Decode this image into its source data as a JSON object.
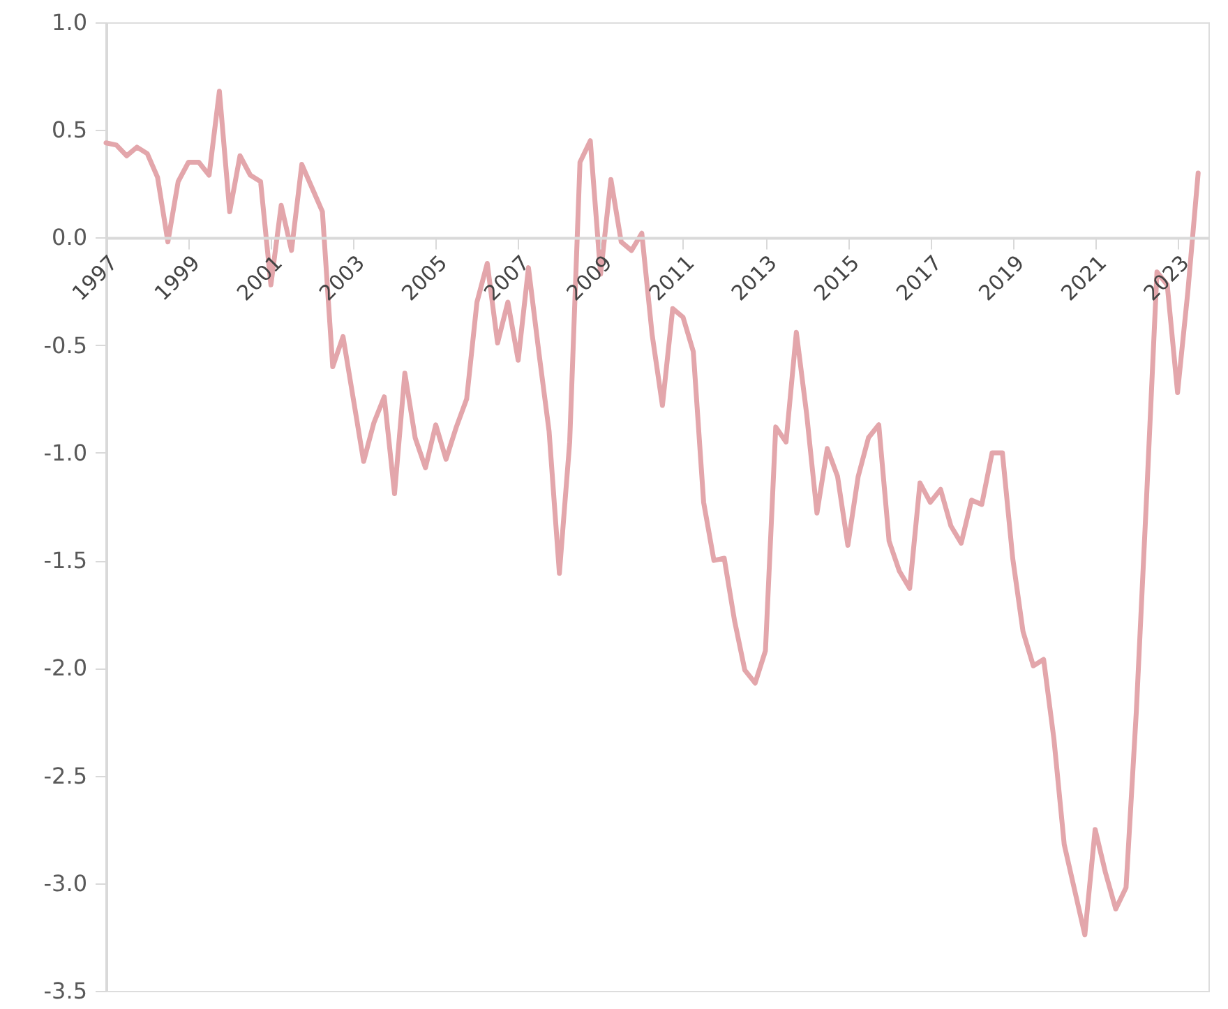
{
  "chart_data": {
    "type": "line",
    "x": [
      1997,
      1997.25,
      1997.5,
      1997.75,
      1998,
      1998.25,
      1998.5,
      1998.75,
      1999,
      1999.25,
      1999.5,
      1999.75,
      2000,
      2000.25,
      2000.5,
      2000.75,
      2001,
      2001.25,
      2001.5,
      2001.75,
      2002,
      2002.25,
      2002.5,
      2002.75,
      2003,
      2003.25,
      2003.5,
      2003.75,
      2004,
      2004.25,
      2004.5,
      2004.75,
      2005,
      2005.25,
      2005.5,
      2005.75,
      2006,
      2006.25,
      2006.5,
      2006.75,
      2007,
      2007.25,
      2007.5,
      2007.75,
      2008,
      2008.25,
      2008.5,
      2008.75,
      2009,
      2009.25,
      2009.5,
      2009.75,
      2010,
      2010.25,
      2010.5,
      2010.75,
      2011,
      2011.25,
      2011.5,
      2011.75,
      2012,
      2012.25,
      2012.5,
      2012.75,
      2013,
      2013.25,
      2013.5,
      2013.75,
      2014,
      2014.25,
      2014.5,
      2014.75,
      2015,
      2015.25,
      2015.5,
      2015.75,
      2016,
      2016.25,
      2016.5,
      2016.75,
      2017,
      2017.25,
      2017.5,
      2017.75,
      2018,
      2018.25,
      2018.5,
      2018.75,
      2019,
      2019.25,
      2019.5,
      2019.75,
      2020,
      2020.25,
      2020.5,
      2020.75,
      2021,
      2021.25,
      2021.5,
      2021.75,
      2022,
      2022.25,
      2022.5,
      2022.75,
      2023,
      2023.25,
      2023.5
    ],
    "series": [
      {
        "color": "#e3a6ab",
        "values": [
          0.44,
          0.43,
          0.38,
          0.42,
          0.39,
          0.28,
          -0.02,
          0.26,
          0.35,
          0.35,
          0.29,
          0.68,
          0.12,
          0.38,
          0.29,
          0.26,
          -0.22,
          0.15,
          -0.06,
          0.34,
          0.23,
          0.12,
          -0.6,
          -0.46,
          -0.75,
          -1.04,
          -0.86,
          -0.74,
          -1.19,
          -0.63,
          -0.93,
          -1.07,
          -0.87,
          -1.03,
          -0.88,
          -0.75,
          -0.3,
          -0.12,
          -0.49,
          -0.3,
          -0.57,
          -0.14,
          -0.53,
          -0.9,
          -1.56,
          -0.95,
          0.35,
          0.45,
          -0.17,
          0.27,
          -0.02,
          -0.06,
          0.02,
          -0.45,
          -0.78,
          -0.33,
          -0.37,
          -0.53,
          -1.23,
          -1.5,
          -1.49,
          -1.78,
          -2.01,
          -2.07,
          -1.92,
          -0.88,
          -0.95,
          -0.44,
          -0.82,
          -1.28,
          -0.98,
          -1.11,
          -1.43,
          -1.11,
          -0.93,
          -0.87,
          -1.41,
          -1.55,
          -1.63,
          -1.14,
          -1.23,
          -1.17,
          -1.34,
          -1.42,
          -1.22,
          -1.24,
          -1.0,
          -1.0,
          -1.49,
          -1.83,
          -1.99,
          -1.96,
          -2.33,
          -2.82,
          -3.03,
          -3.24,
          -2.75,
          -2.95,
          -3.12,
          -3.02,
          -2.2,
          -1.2,
          -0.16,
          -0.22,
          -0.72,
          -0.25,
          0.3
        ]
      }
    ],
    "xlim": [
      1997,
      2023.75
    ],
    "xticks": [
      1997,
      1999,
      2001,
      2003,
      2005,
      2007,
      2009,
      2011,
      2013,
      2015,
      2017,
      2019,
      2021,
      2023
    ],
    "ylim": [
      -3.5,
      1.0
    ],
    "yticks": [
      {
        "value": -3.5,
        "label": "-3.5"
      },
      {
        "value": -3.0,
        "label": "-3.0"
      },
      {
        "value": -2.5,
        "label": "-2.5"
      },
      {
        "value": -2.0,
        "label": "-2.0"
      },
      {
        "value": -1.5,
        "label": "-1.5"
      },
      {
        "value": -1.0,
        "label": "-1.0"
      },
      {
        "value": -0.5,
        "label": "-0.5"
      },
      {
        "value": 0.0,
        "label": "0.0"
      },
      {
        "value": 0.5,
        "label": "0.5"
      },
      {
        "value": 1.0,
        "label": "1.0"
      }
    ],
    "grid": false,
    "marker": "none",
    "line_style": "solid"
  }
}
